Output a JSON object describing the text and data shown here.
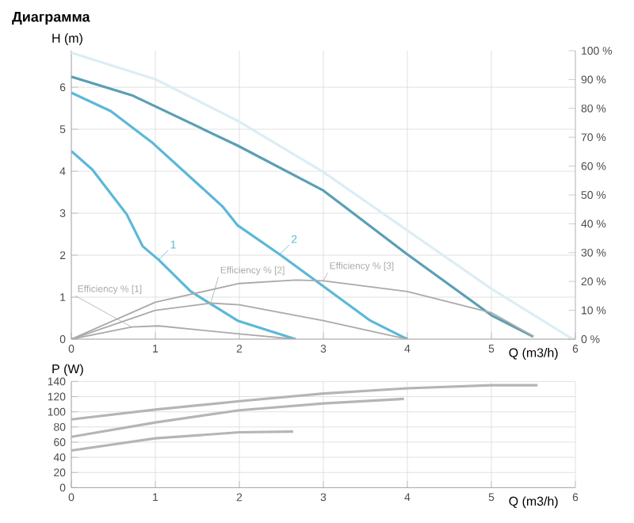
{
  "chart_data": [
    {
      "type": "line",
      "title": "Диаграмма",
      "xlabel": "Q (m3/h)",
      "ylabel": "H (m)",
      "xlim": [
        0,
        6
      ],
      "xticks": [
        0,
        1,
        2,
        3,
        4,
        5,
        6
      ],
      "ylim": [
        0,
        6.87
      ],
      "yticks": [
        0,
        1,
        2,
        3,
        4,
        5,
        6
      ],
      "y2lim": [
        0,
        100
      ],
      "y2ticks": [
        {
          "value": 0,
          "label": "0 %"
        },
        {
          "value": 10,
          "label": "10 %"
        },
        {
          "value": 20,
          "label": "20 %"
        },
        {
          "value": 30,
          "label": "30 %"
        },
        {
          "value": 40,
          "label": "40 %"
        },
        {
          "value": 50,
          "label": "50 %"
        },
        {
          "value": 60,
          "label": "60 %"
        },
        {
          "value": 70,
          "label": "70 %"
        },
        {
          "value": 80,
          "label": "80 %"
        },
        {
          "value": 90,
          "label": "90 %"
        },
        {
          "value": 100,
          "label": "100 %"
        }
      ],
      "grid": true,
      "series": [
        {
          "color": "#dcedf4",
          "x": [
            0,
            1,
            2,
            3,
            4,
            5,
            5.97
          ],
          "values": [
            6.82,
            6.19,
            5.18,
            3.98,
            2.59,
            1.2,
            0
          ]
        },
        {
          "color": "#5a9fb5",
          "x": [
            0,
            0.72,
            1.98,
            3,
            4,
            5,
            5.5
          ],
          "values": [
            6.25,
            5.81,
            4.61,
            3.54,
            2.02,
            0.57,
            0.06
          ]
        },
        {
          "name": "2",
          "color": "#5bb8d8",
          "x": [
            0,
            0.47,
            0.97,
            1.8,
            1.98,
            2.48,
            3,
            3.56,
            4
          ],
          "values": [
            5.87,
            5.43,
            4.67,
            3.16,
            2.71,
            2.02,
            1.26,
            0.44,
            0
          ]
        },
        {
          "name": "1",
          "color": "#5bb8d8",
          "x": [
            0,
            0.25,
            0.66,
            0.85,
            1.04,
            1.42,
            1.98,
            2.67
          ],
          "values": [
            4.48,
            4.04,
            2.97,
            2.21,
            1.89,
            1.14,
            0.44,
            0
          ]
        },
        {
          "name": "Efficiency % [3]",
          "axis": "y2",
          "color": "#aaaaaa",
          "x": [
            0,
            1,
            2,
            2.67,
            3,
            4,
            5,
            5.5
          ],
          "values": [
            0,
            12.8,
            19.3,
            20.5,
            20.2,
            16.5,
            9.2,
            1
          ]
        },
        {
          "name": "Efficiency % [2]",
          "axis": "y2",
          "color": "#aaaaaa",
          "x": [
            0,
            1,
            1.66,
            2,
            3,
            4
          ],
          "values": [
            0,
            10,
            12.5,
            11.9,
            6.4,
            0
          ]
        },
        {
          "name": "Efficiency % [1]",
          "axis": "y2",
          "color": "#aaaaaa",
          "x": [
            0,
            0.72,
            1.04,
            2,
            2.67
          ],
          "values": [
            0,
            4.2,
            4.6,
            1.8,
            0
          ]
        }
      ]
    },
    {
      "type": "line",
      "xlabel": "Q (m3/h)",
      "ylabel": "P (W)",
      "xlim": [
        0,
        6
      ],
      "xticks": [
        0,
        1,
        2,
        3,
        4,
        5,
        6
      ],
      "ylim": [
        0,
        140
      ],
      "yticks": [
        0,
        20,
        40,
        60,
        80,
        100,
        120,
        140
      ],
      "grid": true,
      "series": [
        {
          "color": "#b5b5b5",
          "x": [
            0,
            1,
            2,
            3,
            4,
            5,
            5.55
          ],
          "values": [
            90,
            103,
            114,
            124,
            131,
            135,
            135
          ]
        },
        {
          "color": "#b5b5b5",
          "x": [
            0,
            1,
            2,
            3,
            3.96
          ],
          "values": [
            67,
            86,
            102,
            111,
            117
          ]
        },
        {
          "color": "#b5b5b5",
          "x": [
            0,
            1,
            2,
            2.64
          ],
          "values": [
            49,
            65,
            73,
            74
          ]
        }
      ]
    }
  ]
}
